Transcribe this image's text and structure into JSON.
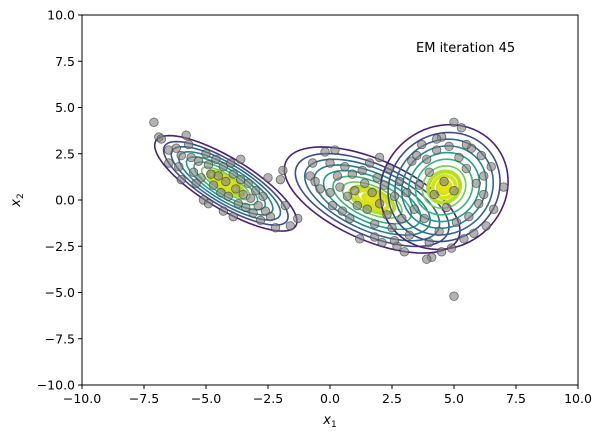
{
  "chart_data": {
    "type": "scatter",
    "title": "",
    "annotation": "EM iteration 45",
    "xlabel": "x",
    "xlabel_sub": "1",
    "ylabel": "x",
    "ylabel_sub": "2",
    "xlim": [
      -10,
      10
    ],
    "ylim": [
      -10,
      10
    ],
    "xticks": [
      -10,
      -7.5,
      -5,
      -2.5,
      0,
      2.5,
      5,
      7.5,
      10
    ],
    "xtick_labels": [
      "−10.0",
      "−7.5",
      "−5.0",
      "−2.5",
      "0.0",
      "2.5",
      "5.0",
      "7.5",
      "10.0"
    ],
    "yticks": [
      10,
      7.5,
      5,
      2.5,
      0,
      -2.5,
      -5,
      -7.5,
      -10
    ],
    "ytick_labels": [
      "10.0",
      "7.5",
      "5.0",
      "2.5",
      "0.0",
      "−2.5",
      "−5.0",
      "−7.5",
      "−10.0"
    ],
    "grid": false,
    "colors": {
      "points": "#808080",
      "points_edge": "#3c3c3c",
      "contour_levels": [
        "#482374",
        "#3e4a89",
        "#31688e",
        "#26828e",
        "#1f9e89",
        "#35b779",
        "#6ece58",
        "#b5de2b",
        "#d6e21a"
      ]
    },
    "components": [
      {
        "mean": [
          -4.2,
          0.9
        ],
        "cov": [
          [
            1.05,
            -0.75
          ],
          [
            -0.75,
            0.85
          ]
        ]
      },
      {
        "mean": [
          1.7,
          0.0
        ],
        "cov": [
          [
            1.6,
            -0.75
          ],
          [
            -0.75,
            1.05
          ]
        ]
      },
      {
        "mean": [
          4.6,
          0.7
        ],
        "cov": [
          [
            0.85,
            0.1
          ],
          [
            0.1,
            1.45
          ]
        ]
      }
    ],
    "points": [
      [
        -7.1,
        4.2
      ],
      [
        -6.9,
        3.4
      ],
      [
        -6.8,
        3.3
      ],
      [
        -6.5,
        2.7
      ],
      [
        -6.2,
        2.8
      ],
      [
        -6.0,
        2.4
      ],
      [
        -6.5,
        2.0
      ],
      [
        -6.1,
        1.8
      ],
      [
        -5.8,
        3.5
      ],
      [
        -5.7,
        3.0
      ],
      [
        -5.6,
        2.3
      ],
      [
        -5.5,
        1.5
      ],
      [
        -5.3,
        2.1
      ],
      [
        -5.2,
        1.2
      ],
      [
        -5.0,
        2.5
      ],
      [
        -4.9,
        1.9
      ],
      [
        -4.8,
        1.4
      ],
      [
        -4.7,
        0.8
      ],
      [
        -4.6,
        2.2
      ],
      [
        -4.5,
        1.3
      ],
      [
        -4.4,
        0.4
      ],
      [
        -4.3,
        1.8
      ],
      [
        -4.2,
        1.0
      ],
      [
        -4.1,
        0.2
      ],
      [
        -4.0,
        2.0
      ],
      [
        -3.9,
        1.4
      ],
      [
        -3.8,
        0.6
      ],
      [
        -3.7,
        -0.2
      ],
      [
        -3.6,
        1.1
      ],
      [
        -3.5,
        0.3
      ],
      [
        -3.4,
        -0.4
      ],
      [
        -3.3,
        0.9
      ],
      [
        -3.2,
        0.1
      ],
      [
        -3.1,
        -0.7
      ],
      [
        -3.0,
        0.5
      ],
      [
        -2.9,
        -0.3
      ],
      [
        -2.8,
        -1.1
      ],
      [
        -2.7,
        0.2
      ],
      [
        -2.6,
        -0.6
      ],
      [
        -2.5,
        1.2
      ],
      [
        -2.4,
        -0.9
      ],
      [
        -2.2,
        -1.5
      ],
      [
        -1.9,
        1.6
      ],
      [
        -1.8,
        -0.3
      ],
      [
        -1.6,
        -1.4
      ],
      [
        -1.3,
        -1.0
      ],
      [
        -5.1,
        0.0
      ],
      [
        -4.9,
        -0.2
      ],
      [
        -4.3,
        -0.6
      ],
      [
        -3.9,
        -0.9
      ],
      [
        -3.6,
        2.2
      ],
      [
        -5.4,
        0.9
      ],
      [
        -2.0,
        1.1
      ],
      [
        -6.0,
        1.1
      ],
      [
        -0.8,
        1.3
      ],
      [
        -0.6,
        1.0
      ],
      [
        -0.4,
        0.6
      ],
      [
        -0.2,
        2.6
      ],
      [
        0.0,
        2.0
      ],
      [
        0.0,
        0.4
      ],
      [
        0.1,
        -0.3
      ],
      [
        0.2,
        2.7
      ],
      [
        0.3,
        1.3
      ],
      [
        0.4,
        0.7
      ],
      [
        0.5,
        -0.6
      ],
      [
        0.6,
        1.8
      ],
      [
        0.7,
        0.2
      ],
      [
        0.8,
        -1.0
      ],
      [
        0.9,
        1.4
      ],
      [
        1.0,
        0.5
      ],
      [
        1.1,
        -0.3
      ],
      [
        1.2,
        -2.1
      ],
      [
        1.3,
        1.6
      ],
      [
        1.4,
        0.9
      ],
      [
        1.5,
        -0.5
      ],
      [
        1.6,
        2.0
      ],
      [
        1.7,
        0.4
      ],
      [
        1.8,
        -1.3
      ],
      [
        1.9,
        1.2
      ],
      [
        2.0,
        -0.2
      ],
      [
        2.1,
        -2.3
      ],
      [
        2.2,
        0.8
      ],
      [
        2.3,
        -0.8
      ],
      [
        2.4,
        1.7
      ],
      [
        2.5,
        -1.5
      ],
      [
        2.6,
        0.2
      ],
      [
        2.7,
        -2.5
      ],
      [
        2.8,
        1.0
      ],
      [
        2.9,
        -1.0
      ],
      [
        3.0,
        -2.8
      ],
      [
        3.1,
        0.4
      ],
      [
        3.2,
        -1.9
      ],
      [
        3.3,
        2.1
      ],
      [
        3.4,
        -0.5
      ],
      [
        2.0,
        2.3
      ],
      [
        -0.7,
        2.0
      ],
      [
        1.8,
        -2.0
      ],
      [
        2.6,
        -2.2
      ],
      [
        3.5,
        2.4
      ],
      [
        3.6,
        0.8
      ],
      [
        3.7,
        3.0
      ],
      [
        3.8,
        -1.0
      ],
      [
        3.9,
        2.2
      ],
      [
        4.0,
        -2.3
      ],
      [
        4.0,
        1.5
      ],
      [
        4.1,
        -3.1
      ],
      [
        4.2,
        0.3
      ],
      [
        4.3,
        2.7
      ],
      [
        4.4,
        -1.7
      ],
      [
        4.5,
        3.4
      ],
      [
        4.5,
        -2.8
      ],
      [
        4.6,
        1.0
      ],
      [
        4.7,
        -0.4
      ],
      [
        4.8,
        2.9
      ],
      [
        4.9,
        -2.6
      ],
      [
        5.0,
        4.2
      ],
      [
        5.0,
        0.5
      ],
      [
        5.1,
        -1.2
      ],
      [
        5.2,
        2.3
      ],
      [
        5.3,
        3.9
      ],
      [
        5.4,
        -2.1
      ],
      [
        5.5,
        1.7
      ],
      [
        5.6,
        -0.9
      ],
      [
        5.7,
        2.8
      ],
      [
        5.8,
        -1.8
      ],
      [
        5.9,
        0.9
      ],
      [
        6.0,
        -0.2
      ],
      [
        6.1,
        2.4
      ],
      [
        6.2,
        0.3
      ],
      [
        6.3,
        -1.4
      ],
      [
        6.5,
        1.8
      ],
      [
        6.6,
        -0.5
      ],
      [
        7.0,
        0.7
      ],
      [
        3.9,
        -3.2
      ],
      [
        5.0,
        -5.2
      ],
      [
        5.5,
        3.0
      ],
      [
        6.2,
        1.3
      ],
      [
        4.3,
        3.3
      ]
    ]
  }
}
